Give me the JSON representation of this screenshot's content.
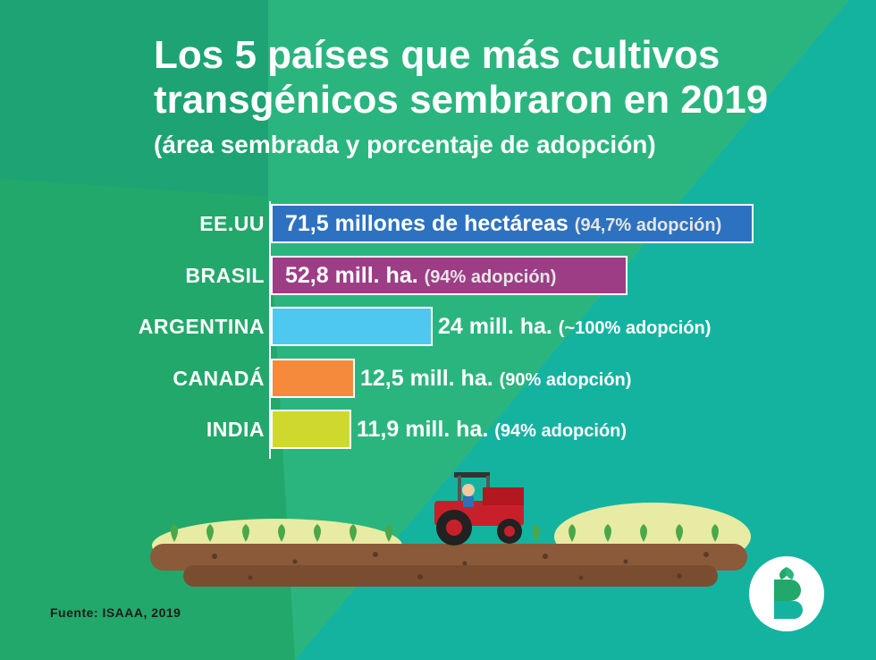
{
  "title_line1": "Los 5 países que más cultivos",
  "title_line2": "transgénicos sembraron en 2019",
  "subtitle": "(área sembrada y porcentaje de adopción)",
  "source": "Fuente: ISAAA, 2019",
  "colors": {
    "background": "#22a86a",
    "background_light": "#2bb57e",
    "teal_accent": "#14b3a0",
    "usa": "#2d72c0",
    "brasil": "#9d3d86",
    "argentina": "#4ec8ef",
    "canada": "#f58a3c",
    "india": "#cfd82e"
  },
  "logo_icon": "biotech-b-logo-icon",
  "illustration_icon": "tractor-field-icon",
  "chart_data": {
    "type": "bar",
    "orientation": "horizontal",
    "categories": [
      "EE.UU",
      "BRASIL",
      "ARGENTINA",
      "CANADÁ",
      "INDIA"
    ],
    "values": [
      71.5,
      52.8,
      24,
      12.5,
      11.9
    ],
    "adoption_percent": [
      94.7,
      94,
      100,
      90,
      94
    ],
    "labels_main": [
      "71,5 millones de hectáreas",
      "52,8 mill. ha.",
      "24 mill. ha.",
      "12,5 mill. ha.",
      "11,9 mill. ha."
    ],
    "labels_sub": [
      "(94,7% adopción)",
      "(94% adopción)",
      "(~100% adopción)",
      "(90% adopción)",
      "(94% adopción)"
    ],
    "label_inside": [
      true,
      true,
      false,
      false,
      false
    ],
    "bar_colors": [
      "#2d72c0",
      "#9d3d86",
      "#4ec8ef",
      "#f58a3c",
      "#cfd82e"
    ],
    "unit": "millones de hectáreas",
    "xlim": [
      0,
      71.5
    ],
    "grid": false,
    "legend": "none"
  }
}
